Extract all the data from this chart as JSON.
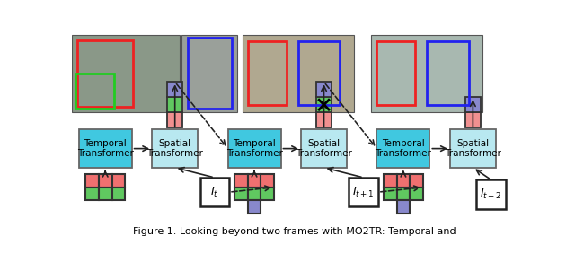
{
  "fig_width": 6.4,
  "fig_height": 3.02,
  "bg_color": "#ffffff",
  "caption": "Figure 1. Looking beyond two frames with MO2TR: Temporal and",
  "temporal_color": "#40c8e0",
  "spatial_color": "#b8e8f0",
  "grid_colors": {
    "red": "#f07070",
    "green": "#60c860",
    "blue": "#8888cc",
    "pink": "#f09090"
  },
  "It_labels": [
    "$I_t$",
    "$I_{t+1}$",
    "$I_{t+2}$"
  ],
  "temporal_label": "Temporal\nTransformer",
  "spatial_label": "Spatial\nTransformer",
  "img_bg": "#7a8a7a",
  "person_colors": {
    "red_box": "#ee2222",
    "green_box": "#22cc22",
    "blue_box": "#2222ee"
  }
}
